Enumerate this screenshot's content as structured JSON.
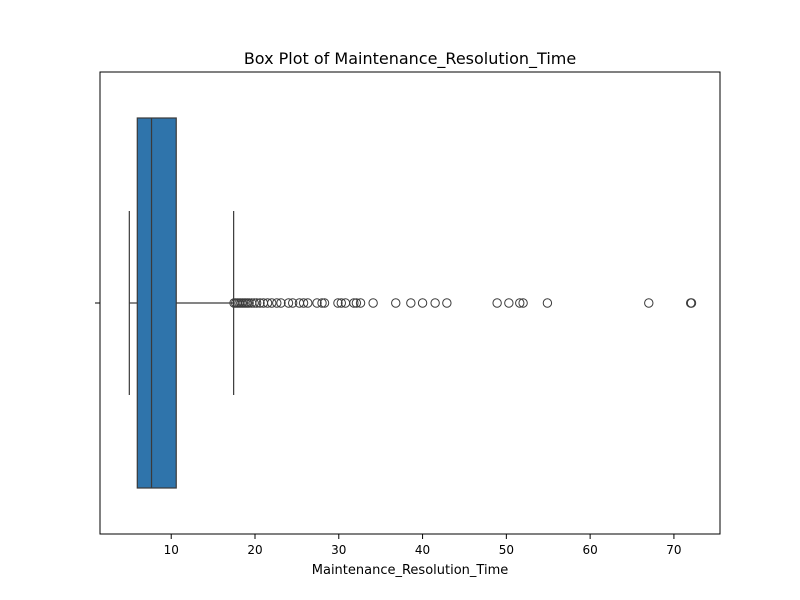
{
  "chart_data": {
    "type": "box",
    "orientation": "horizontal",
    "title": "Box Plot of Maintenance_Resolution_Time",
    "xlabel": "Maintenance_Resolution_Time",
    "ylabel": "",
    "xlim": [
      1.5,
      75.5
    ],
    "xticks": [
      10,
      20,
      30,
      40,
      50,
      60,
      70
    ],
    "grid": false,
    "box_color": "#2f74ab",
    "line_color": "#3a3a3a",
    "stats": {
      "whisker_low": 5.0,
      "q1": 5.95,
      "median": 7.65,
      "q3": 10.6,
      "whisker_high": 17.45
    },
    "outliers": [
      17.5,
      17.7,
      17.9,
      18.1,
      18.3,
      18.5,
      18.7,
      18.9,
      19.1,
      19.3,
      19.6,
      19.9,
      20.2,
      20.6,
      21.0,
      21.5,
      22.0,
      22.6,
      23.1,
      24.0,
      24.5,
      25.3,
      25.8,
      26.3,
      27.4,
      28.0,
      28.3,
      29.9,
      30.3,
      30.8,
      31.8,
      32.1,
      32.6,
      34.1,
      36.8,
      38.6,
      40.0,
      41.5,
      42.9,
      48.9,
      50.3,
      51.6,
      52.0,
      54.9,
      67.0,
      72.0,
      72.1
    ]
  }
}
